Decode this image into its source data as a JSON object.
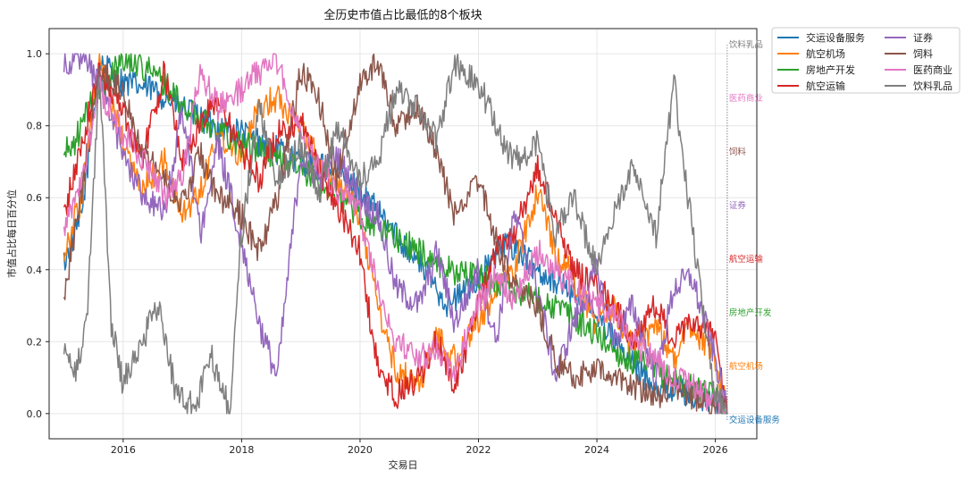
{
  "chart_data": {
    "type": "line",
    "title": "全历史市值占比最低的8个板块",
    "xlabel": "交易日",
    "ylabel": "市值占比每日百分位",
    "xlim": [
      2014.75,
      2026.7
    ],
    "ylim": [
      -0.07,
      1.07
    ],
    "x_ticks": [
      2016,
      2018,
      2020,
      2022,
      2024,
      2026
    ],
    "x_tick_labels": [
      "2016",
      "2018",
      "2020",
      "2022",
      "2024",
      "2026"
    ],
    "y_ticks": [
      0.0,
      0.2,
      0.4,
      0.6,
      0.8,
      1.0
    ],
    "y_tick_labels": [
      "0.0",
      "0.2",
      "0.4",
      "0.6",
      "0.8",
      "1.0"
    ],
    "grid": true,
    "legend_position": "outside-top-right",
    "end_marker_x": 2026.2,
    "series": [
      {
        "name": "交运设备服务",
        "color": "#1f77b4",
        "end_label": "交运设备服务",
        "x": [
          2015.0,
          2015.3,
          2015.6,
          2016.0,
          2016.5,
          2017.0,
          2017.5,
          2018.0,
          2018.5,
          2019.0,
          2019.5,
          2020.0,
          2020.5,
          2021.0,
          2021.5,
          2022.0,
          2022.5,
          2023.0,
          2023.5,
          2024.0,
          2024.5,
          2025.0,
          2025.5,
          2026.0,
          2026.2
        ],
        "values": [
          0.42,
          0.55,
          0.98,
          0.92,
          0.9,
          0.85,
          0.8,
          0.78,
          0.74,
          0.7,
          0.68,
          0.62,
          0.52,
          0.42,
          0.3,
          0.38,
          0.48,
          0.4,
          0.35,
          0.28,
          0.15,
          0.08,
          0.06,
          0.03,
          0.0
        ]
      },
      {
        "name": "航空机场",
        "color": "#ff7f0e",
        "end_label": "航空机场",
        "x": [
          2015.0,
          2015.3,
          2015.6,
          2016.0,
          2016.3,
          2016.7,
          2017.0,
          2017.3,
          2017.6,
          2018.0,
          2018.3,
          2018.6,
          2019.0,
          2019.3,
          2019.6,
          2020.0,
          2020.3,
          2020.6,
          2021.0,
          2021.3,
          2021.6,
          2022.0,
          2022.3,
          2022.6,
          2023.0,
          2023.3,
          2023.6,
          2024.0,
          2024.3,
          2024.6,
          2025.0,
          2025.3,
          2025.6,
          2026.0,
          2026.2
        ],
        "values": [
          0.45,
          0.6,
          0.98,
          0.75,
          0.62,
          0.7,
          0.55,
          0.62,
          0.78,
          0.72,
          0.85,
          0.88,
          0.8,
          0.7,
          0.65,
          0.55,
          0.3,
          0.12,
          0.08,
          0.22,
          0.15,
          0.25,
          0.35,
          0.4,
          0.62,
          0.45,
          0.38,
          0.25,
          0.3,
          0.18,
          0.25,
          0.15,
          0.25,
          0.15,
          0.0
        ]
      },
      {
        "name": "房地产开发",
        "color": "#2ca02c",
        "end_label": "房地产开发",
        "x": [
          2015.0,
          2015.2,
          2015.5,
          2016.0,
          2016.3,
          2016.7,
          2017.0,
          2017.5,
          2018.0,
          2018.5,
          2019.0,
          2019.5,
          2020.0,
          2020.5,
          2021.0,
          2021.5,
          2022.0,
          2022.5,
          2023.0,
          2023.5,
          2024.0,
          2024.5,
          2025.0,
          2025.5,
          2026.0,
          2026.2
        ],
        "values": [
          0.72,
          0.76,
          0.88,
          0.99,
          0.97,
          0.92,
          0.85,
          0.8,
          0.75,
          0.72,
          0.68,
          0.62,
          0.55,
          0.5,
          0.45,
          0.4,
          0.38,
          0.35,
          0.32,
          0.28,
          0.22,
          0.15,
          0.12,
          0.08,
          0.04,
          0.0
        ]
      },
      {
        "name": "航空运输",
        "color": "#d62728",
        "end_label": "航空运输",
        "x": [
          2015.0,
          2015.3,
          2015.6,
          2016.0,
          2016.3,
          2016.7,
          2017.0,
          2017.3,
          2017.6,
          2018.0,
          2018.3,
          2018.6,
          2019.0,
          2019.3,
          2019.6,
          2020.0,
          2020.3,
          2020.6,
          2021.0,
          2021.3,
          2021.6,
          2022.0,
          2022.3,
          2022.6,
          2023.0,
          2023.3,
          2023.6,
          2024.0,
          2024.3,
          2024.6,
          2025.0,
          2025.3,
          2025.6,
          2026.0,
          2026.2
        ],
        "values": [
          0.55,
          0.75,
          0.95,
          0.85,
          0.7,
          0.95,
          0.7,
          0.8,
          0.88,
          0.72,
          0.65,
          0.78,
          0.82,
          0.68,
          0.58,
          0.45,
          0.12,
          0.05,
          0.1,
          0.2,
          0.08,
          0.3,
          0.45,
          0.5,
          0.68,
          0.55,
          0.4,
          0.35,
          0.3,
          0.2,
          0.3,
          0.2,
          0.25,
          0.22,
          0.0
        ]
      },
      {
        "name": "证券",
        "color": "#9467bd",
        "end_label": "证券",
        "x": [
          2015.0,
          2015.3,
          2015.6,
          2016.0,
          2016.3,
          2016.7,
          2017.0,
          2017.3,
          2017.6,
          2018.0,
          2018.3,
          2018.6,
          2019.0,
          2019.3,
          2019.6,
          2020.0,
          2020.3,
          2020.6,
          2021.0,
          2021.3,
          2021.6,
          2022.0,
          2022.3,
          2022.6,
          2023.0,
          2023.3,
          2023.6,
          2024.0,
          2024.3,
          2024.6,
          2025.0,
          2025.3,
          2025.6,
          2026.0,
          2026.2
        ],
        "values": [
          0.98,
          0.99,
          0.92,
          0.72,
          0.62,
          0.55,
          0.85,
          0.5,
          0.75,
          0.48,
          0.25,
          0.1,
          0.72,
          0.65,
          0.72,
          0.6,
          0.55,
          0.35,
          0.3,
          0.45,
          0.25,
          0.4,
          0.2,
          0.55,
          0.35,
          0.1,
          0.25,
          0.4,
          0.2,
          0.3,
          0.1,
          0.35,
          0.38,
          0.15,
          0.0
        ]
      },
      {
        "name": "饲料",
        "color": "#8c564b",
        "end_label": "饲料",
        "x": [
          2015.0,
          2015.3,
          2015.6,
          2016.0,
          2016.3,
          2016.7,
          2017.0,
          2017.3,
          2017.6,
          2018.0,
          2018.3,
          2018.6,
          2019.0,
          2019.3,
          2019.6,
          2020.0,
          2020.3,
          2020.6,
          2021.0,
          2021.3,
          2021.6,
          2022.0,
          2022.3,
          2022.6,
          2023.0,
          2023.3,
          2023.6,
          2024.0,
          2024.3,
          2024.6,
          2025.0,
          2025.3,
          2025.6,
          2026.0,
          2026.2
        ],
        "values": [
          0.33,
          0.62,
          0.95,
          0.9,
          0.75,
          0.65,
          0.58,
          0.72,
          0.6,
          0.55,
          0.45,
          0.6,
          0.95,
          0.88,
          0.65,
          0.92,
          0.98,
          0.8,
          0.85,
          0.72,
          0.55,
          0.65,
          0.48,
          0.35,
          0.3,
          0.15,
          0.1,
          0.12,
          0.1,
          0.08,
          0.05,
          0.08,
          0.05,
          0.03,
          0.0
        ]
      },
      {
        "name": "医药商业",
        "color": "#e377c2",
        "end_label": "医药商业",
        "x": [
          2015.0,
          2015.3,
          2015.6,
          2016.0,
          2016.3,
          2016.7,
          2017.0,
          2017.3,
          2017.6,
          2018.0,
          2018.3,
          2018.6,
          2019.0,
          2019.3,
          2019.6,
          2020.0,
          2020.3,
          2020.6,
          2021.0,
          2021.3,
          2021.6,
          2022.0,
          2022.3,
          2022.6,
          2023.0,
          2023.3,
          2023.6,
          2024.0,
          2024.3,
          2024.6,
          2025.0,
          2025.3,
          2025.6,
          2026.0,
          2026.2
        ],
        "values": [
          0.5,
          0.65,
          0.9,
          0.78,
          0.72,
          0.6,
          0.65,
          0.95,
          0.85,
          0.9,
          0.95,
          0.98,
          0.78,
          0.7,
          0.62,
          0.55,
          0.35,
          0.2,
          0.15,
          0.18,
          0.12,
          0.3,
          0.38,
          0.32,
          0.45,
          0.4,
          0.35,
          0.3,
          0.28,
          0.2,
          0.15,
          0.1,
          0.08,
          0.03,
          0.0
        ]
      },
      {
        "name": "饮料乳品",
        "color": "#7f7f7f",
        "end_label": "饮料乳品",
        "x": [
          2015.0,
          2015.2,
          2015.4,
          2015.6,
          2015.8,
          2016.0,
          2016.3,
          2016.6,
          2016.9,
          2017.2,
          2017.5,
          2017.8,
          2018.0,
          2018.3,
          2018.6,
          2019.0,
          2019.3,
          2019.6,
          2020.0,
          2020.3,
          2020.6,
          2021.0,
          2021.3,
          2021.6,
          2022.0,
          2022.3,
          2022.6,
          2023.0,
          2023.3,
          2023.6,
          2024.0,
          2024.3,
          2024.6,
          2025.0,
          2025.3,
          2025.5,
          2025.7,
          2026.0,
          2026.2
        ],
        "values": [
          0.2,
          0.1,
          0.3,
          0.95,
          0.25,
          0.08,
          0.2,
          0.3,
          0.05,
          0.02,
          0.15,
          0.01,
          0.5,
          0.85,
          0.65,
          0.75,
          0.6,
          0.8,
          0.65,
          0.7,
          0.9,
          0.85,
          0.75,
          0.98,
          0.92,
          0.8,
          0.7,
          0.75,
          0.5,
          0.6,
          0.4,
          0.55,
          0.7,
          0.5,
          0.92,
          0.65,
          0.4,
          0.05,
          0.0
        ]
      }
    ]
  }
}
